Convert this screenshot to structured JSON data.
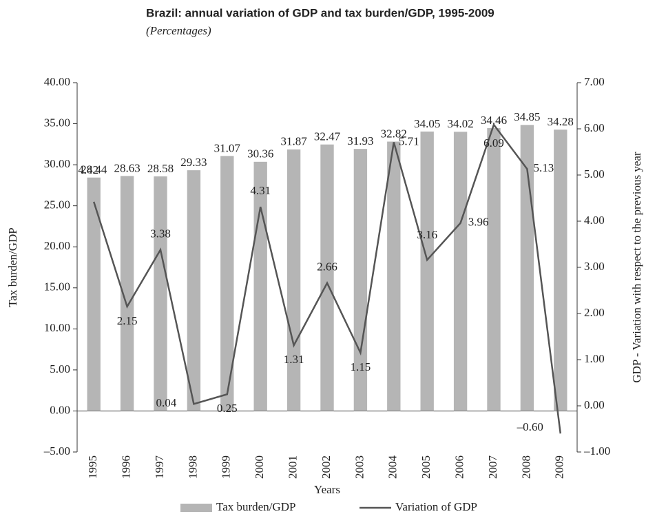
{
  "chart_data": {
    "type": "bar-line",
    "title": "Brazil: annual variation of GDP and tax burden/GDP, 1995-2009",
    "subtitle": "(Percentages)",
    "x_label": "Years",
    "y_label": "Tax burden/GDP",
    "y2_label": "GDP - Variation with respect to the previous year",
    "categories": [
      "1995",
      "1996",
      "1997",
      "1998",
      "1999",
      "2000",
      "2001",
      "2002",
      "2003",
      "2004",
      "2005",
      "2006",
      "2007",
      "2008",
      "2009"
    ],
    "series": [
      {
        "name": "Tax burden/GDP",
        "kind": "bar",
        "color": "#b5b5b5",
        "values": [
          28.44,
          28.63,
          28.58,
          29.33,
          31.07,
          30.36,
          31.87,
          32.47,
          31.93,
          32.82,
          34.05,
          34.02,
          34.46,
          34.85,
          34.28
        ]
      },
      {
        "name": "Variation of GDP",
        "kind": "line",
        "axis": "y2",
        "color": "#555555",
        "values": [
          4.42,
          2.15,
          3.38,
          0.04,
          0.25,
          4.31,
          1.31,
          2.66,
          1.15,
          5.71,
          3.16,
          3.96,
          6.09,
          5.13,
          -0.6
        ],
        "value_labels": [
          "4.42",
          "2.15",
          "3.38",
          "0.04",
          "0.25",
          "4.31",
          "1.31",
          "2.66",
          "1.15",
          "5.71",
          "3.16",
          "3.96",
          "6.09",
          "5.13",
          "–0.60"
        ]
      }
    ],
    "ylim": [
      -5,
      40
    ],
    "yticks": [
      {
        "value": -5,
        "label": "–5.00"
      },
      {
        "value": 0,
        "label": "0.00"
      },
      {
        "value": 5,
        "label": "5.00"
      },
      {
        "value": 10,
        "label": "10.00"
      },
      {
        "value": 15,
        "label": "15.00"
      },
      {
        "value": 20,
        "label": "20.00"
      },
      {
        "value": 25,
        "label": "25.00"
      },
      {
        "value": 30,
        "label": "30.00"
      },
      {
        "value": 35,
        "label": "35.00"
      },
      {
        "value": 40,
        "label": "40.00"
      }
    ],
    "y2lim": [
      -1,
      7
    ],
    "y2ticks": [
      {
        "value": -1,
        "label": "–1.00"
      },
      {
        "value": 0,
        "label": "0.00"
      },
      {
        "value": 1,
        "label": "1.00"
      },
      {
        "value": 2,
        "label": "2.00"
      },
      {
        "value": 3,
        "label": "3.00"
      },
      {
        "value": 4,
        "label": "4.00"
      },
      {
        "value": 5,
        "label": "5.00"
      },
      {
        "value": 6,
        "label": "6.00"
      },
      {
        "value": 7,
        "label": "7.00"
      }
    ]
  }
}
